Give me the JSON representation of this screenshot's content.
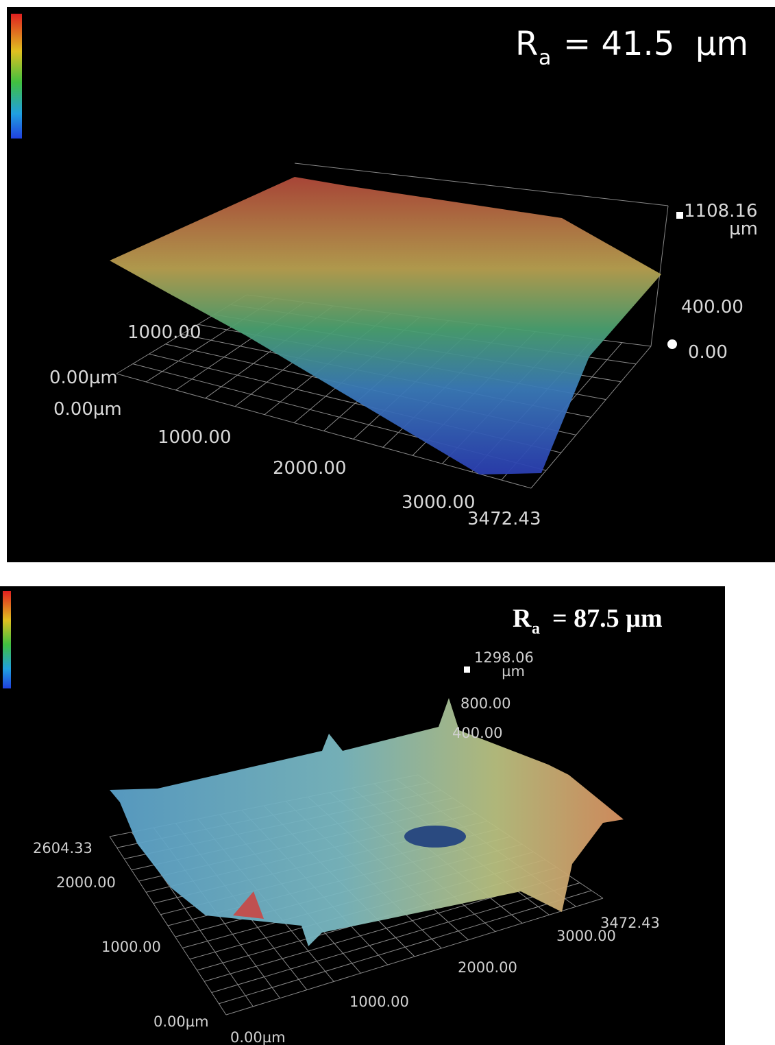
{
  "panels": [
    {
      "ra": {
        "symbol": "R",
        "subscript": "a",
        "value": "= 41.5  µm"
      },
      "z_axis": {
        "max": "1108.16",
        "unit": "µm",
        "mid": "400.00",
        "zero": "0.00"
      },
      "y_axis": {
        "tick": "1000.00",
        "origin": "0.00µm"
      },
      "x_axis": {
        "origin": "0.00µm",
        "ticks": [
          "1000.00",
          "2000.00",
          "3000.00"
        ],
        "max": "3472.43"
      }
    },
    {
      "ra": {
        "symbol": "R",
        "subscript": "a",
        "value": "= 87.5 µm"
      },
      "z_axis": {
        "max": "1298.06",
        "unit": "µm",
        "upper": "800.00",
        "mid": "400.00"
      },
      "y_axis": {
        "max": "2604.33",
        "ticks": [
          "2000.00",
          "1000.00"
        ],
        "origin": "0.00µm"
      },
      "x_axis": {
        "origin": "0.00µm",
        "ticks": [
          "1000.00",
          "2000.00",
          "3000.00"
        ],
        "max": "3472.43"
      }
    }
  ]
}
